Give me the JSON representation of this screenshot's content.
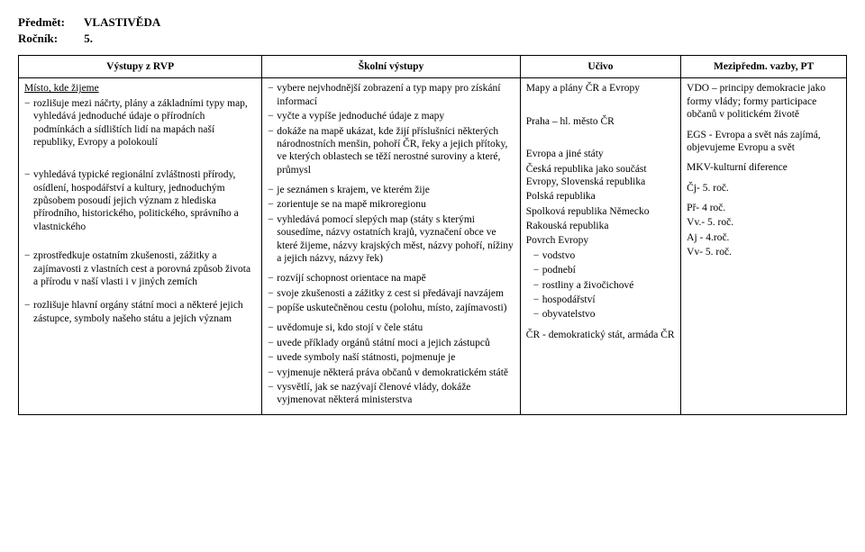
{
  "header": {
    "subject_label": "Předmět:",
    "subject_value": "VLASTIVĚDA",
    "grade_label": "Ročník:",
    "grade_value": "5."
  },
  "columns": {
    "c1": "Výstupy z RVP",
    "c2": "Školní výstupy",
    "c3": "Učivo",
    "c4": "Mezipředm. vazby, PT"
  },
  "col1": {
    "heading": "Místo, kde žijeme",
    "b1": "rozlišuje mezi náčrty, plány a základními typy map, vyhledává jednoduché údaje o přírodních podmínkách a sídlištích lidí na mapách naší republiky, Evropy a polokoulí",
    "b2": "vyhledává typické regionální zvláštnosti přírody, osídlení, hospodářství a kultury, jednoduchým způsobem posoudí jejich význam z hlediska přírodního, historického, politického, správního a vlastnického",
    "b3": "zprostředkuje ostatním zkušenosti, zážitky a zajímavosti z vlastních cest a porovná způsob života a přírodu v naší vlasti i v jiných zemích",
    "b4": "rozlišuje hlavní orgány státní moci a některé jejich zástupce, symboly našeho státu a jejich význam"
  },
  "col2": {
    "b1": "vybere nejvhodnější zobrazení a typ mapy pro získání informací",
    "b2": "vyčte a vypíše jednoduché údaje z mapy",
    "b3": "dokáže na mapě ukázat, kde žijí příslušníci některých národnostních menšin, pohoří ČR, řeky a jejich přítoky, ve kterých oblastech se těží nerostné suroviny a které, průmysl",
    "b4": "je seznámen s krajem, ve kterém žije",
    "b5": "zorientuje se na mapě mikroregionu",
    "b6": "vyhledává pomocí slepých map (státy s kterými sousedíme, názvy ostatních krajů, vyznačení obce ve které žijeme, názvy krajských měst, názvy pohoří, nížiny a jejich názvy, názvy řek)",
    "b7": "rozvíjí schopnost orientace na mapě",
    "b8": "svoje zkušenosti a zážitky z cest si předávají navzájem",
    "b9": "popíše uskutečněnou cestu (polohu, místo, zajímavosti)",
    "b10": "uvědomuje si, kdo stojí v čele státu",
    "b11": "uvede příklady orgánů státní moci a jejich zástupců",
    "b12": "uvede symboly naší státnosti, pojmenuje je",
    "b13": "vyjmenuje některá práva občanů v demokratickém státě",
    "b14": "vysvětlí, jak se nazývají členové vlády, dokáže vyjmenovat některá ministerstva"
  },
  "col3": {
    "l1": "Mapy a plány ČR a Evropy",
    "l2": "Praha – hl. město ČR",
    "l3": "Evropa a jiné státy",
    "l4": "Česká republika jako součást Evropy, Slovenská republika",
    "l5": "Polská republika",
    "l6": "Spolková republika Německo",
    "l7": "Rakouská republika",
    "l8": "Povrch Evropy",
    "s1": "vodstvo",
    "s2": "podnebí",
    "s3": "rostliny a živočichové",
    "s4": "hospodářství",
    "s5": "obyvatelstvo",
    "l9": "ČR - demokratický stát, armáda ČR"
  },
  "col4": {
    "l1": "VDO – principy demokracie jako formy vlády; formy participace občanů v politickém životě",
    "l2": "EGS - Evropa a svět nás zajímá, objevujeme Evropu a svět",
    "l3": "MKV-kulturní diference",
    "l4": "Čj- 5. roč.",
    "l5": "Př- 4 roč.",
    "l6": "Vv.- 5. roč.",
    "l7": "Aj - 4.roč.",
    "l8": "Vv- 5. roč."
  }
}
